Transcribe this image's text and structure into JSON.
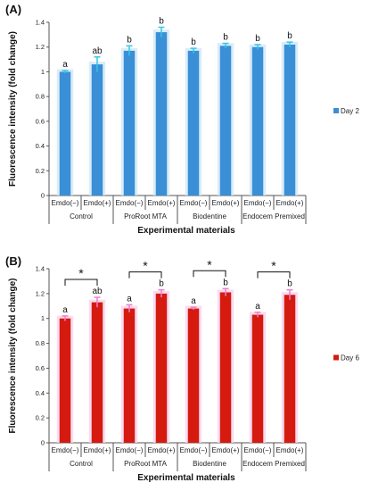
{
  "chart_data": [
    {
      "type": "bar",
      "panel_label": "(A)",
      "ylabel": "Fluorescence intensity (fold change)",
      "xlabel": "Experimental materials",
      "ylim": [
        0,
        1.4
      ],
      "yticks": [
        "0",
        "0.2",
        "0.4",
        "0.6",
        "0.8",
        "1",
        "1.2",
        "1.4"
      ],
      "categories": [
        "Emdo(−)",
        "Emdo(+)",
        "Emdo(−)",
        "Emdo(+)",
        "Emdo(−)",
        "Emdo(+)",
        "Emdo(−)",
        "Emdo(+)"
      ],
      "groups": [
        "Control",
        "ProRoot MTA",
        "Biodentine",
        "Endocem Premixed"
      ],
      "series": [
        {
          "name": "Day 2",
          "values": [
            1.0,
            1.06,
            1.17,
            1.32,
            1.17,
            1.21,
            1.2,
            1.22
          ],
          "errors": [
            0.01,
            0.06,
            0.04,
            0.04,
            0.02,
            0.02,
            0.02,
            0.02
          ],
          "letters": [
            "a",
            "ab",
            "b",
            "b",
            "b",
            "b",
            "b",
            "b"
          ]
        }
      ],
      "significance": [],
      "colors": {
        "bar": "#3a8fd6",
        "error": "#35c6e6",
        "halo": "#cfe9f8"
      },
      "legend_position": "right"
    },
    {
      "type": "bar",
      "panel_label": "(B)",
      "ylabel": "Fluorescence intensity (fold change)",
      "xlabel": "Experimental materials",
      "ylim": [
        0,
        1.4
      ],
      "yticks": [
        "0",
        "0.2",
        "0.4",
        "0.6",
        "0.8",
        "1",
        "1.2",
        "1.4"
      ],
      "categories": [
        "Emdo(−)",
        "Emdo(+)",
        "Emdo(−)",
        "Emdo(+)",
        "Emdo(−)",
        "Emdo(+)",
        "Emdo(−)",
        "Emdo(+)"
      ],
      "groups": [
        "Control",
        "ProRoot MTA",
        "Biodentine",
        "Endocem Premixed"
      ],
      "series": [
        {
          "name": "Day 6",
          "values": [
            1.0,
            1.13,
            1.08,
            1.2,
            1.08,
            1.21,
            1.03,
            1.19
          ],
          "errors": [
            0.02,
            0.04,
            0.03,
            0.03,
            0.01,
            0.03,
            0.02,
            0.04
          ],
          "letters": [
            "a",
            "ab",
            "a",
            "b",
            "a",
            "b",
            "a",
            "b"
          ]
        }
      ],
      "significance": [
        {
          "from": 0,
          "to": 1,
          "label": "*"
        },
        {
          "from": 2,
          "to": 3,
          "label": "*"
        },
        {
          "from": 4,
          "to": 5,
          "label": "*"
        },
        {
          "from": 6,
          "to": 7,
          "label": "*"
        }
      ],
      "colors": {
        "bar": "#d51a10",
        "error": "#ef7fc7",
        "halo": "#f7d3ec"
      },
      "legend_position": "right"
    }
  ]
}
